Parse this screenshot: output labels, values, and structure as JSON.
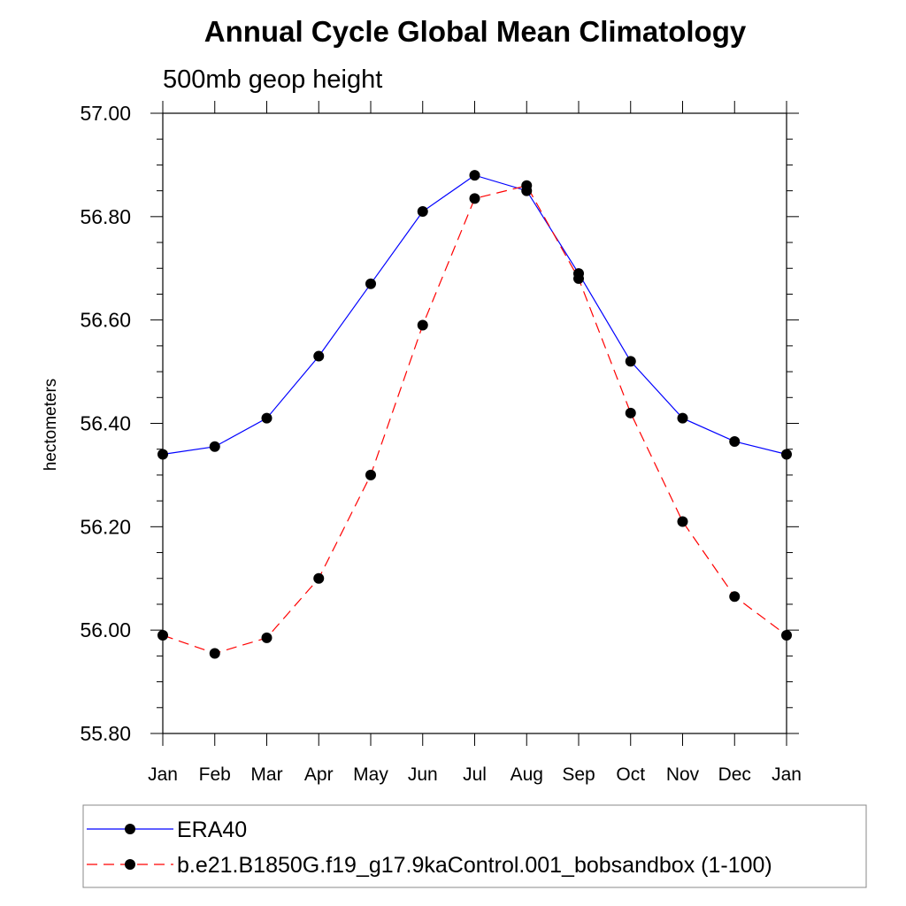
{
  "chart_data": {
    "type": "line",
    "title": "Annual Cycle Global Mean Climatology",
    "subtitle": "500mb geop height",
    "xlabel": "",
    "ylabel": "hectometers",
    "categories": [
      "Jan",
      "Feb",
      "Mar",
      "Apr",
      "May",
      "Jun",
      "Jul",
      "Aug",
      "Sep",
      "Oct",
      "Nov",
      "Dec",
      "Jan"
    ],
    "ylim": [
      55.8,
      57.0
    ],
    "yticks": [
      "55.80",
      "56.00",
      "56.20",
      "56.40",
      "56.60",
      "56.80",
      "57.00"
    ],
    "grid": false,
    "legend_position": "bottom",
    "series": [
      {
        "name": "ERA40",
        "color": "#0000ff",
        "line_style": "solid",
        "marker": "filled-circle",
        "values": [
          56.34,
          56.355,
          56.41,
          56.53,
          56.67,
          56.81,
          56.88,
          56.85,
          56.69,
          56.52,
          56.41,
          56.365,
          56.34
        ]
      },
      {
        "name": "b.e21.B1850G.f19_g17.9kaControl.001_bobsandbox (1-100)",
        "color": "#ff0000",
        "line_style": "dashed",
        "marker": "filled-circle",
        "values": [
          55.99,
          55.955,
          55.985,
          56.1,
          56.3,
          56.59,
          56.835,
          56.86,
          56.68,
          56.42,
          56.21,
          56.065,
          55.99
        ]
      }
    ]
  }
}
